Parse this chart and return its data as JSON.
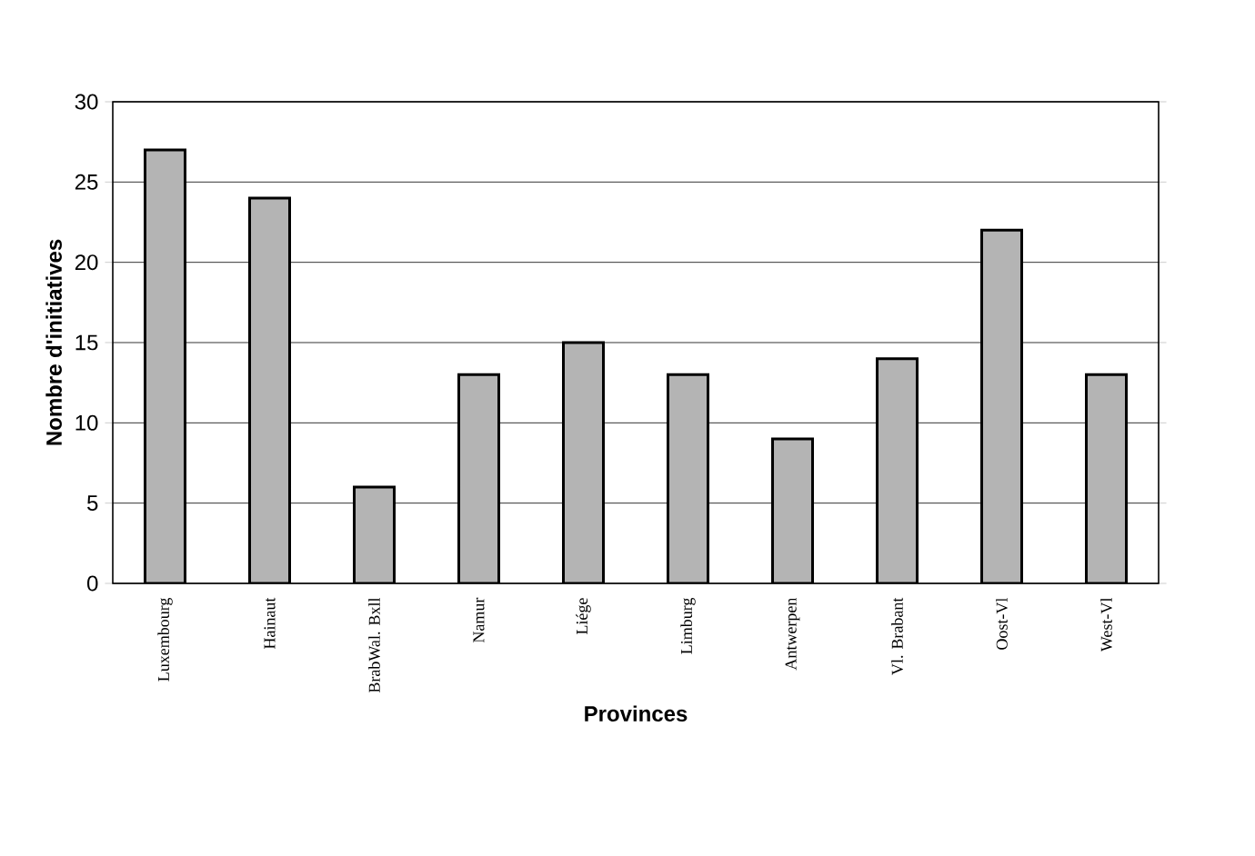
{
  "chart_data": {
    "type": "bar",
    "xlabel": "Provinces",
    "ylabel": "Nombre d'initiatives",
    "categories": [
      "Luxembourg",
      "Hainaut",
      "BrabWal. Bxll",
      "Namur",
      "Liége",
      "Limburg",
      "Antwerpen",
      "Vl. Brabant",
      "Oost-Vl",
      "West-Vl"
    ],
    "values": [
      27,
      24,
      6,
      13,
      15,
      13,
      9,
      14,
      22,
      13
    ],
    "color": "#b4b4b4",
    "ylim": [
      0,
      30
    ],
    "yticks": [
      0,
      5,
      10,
      15,
      20,
      25,
      30
    ],
    "grid": "y"
  }
}
